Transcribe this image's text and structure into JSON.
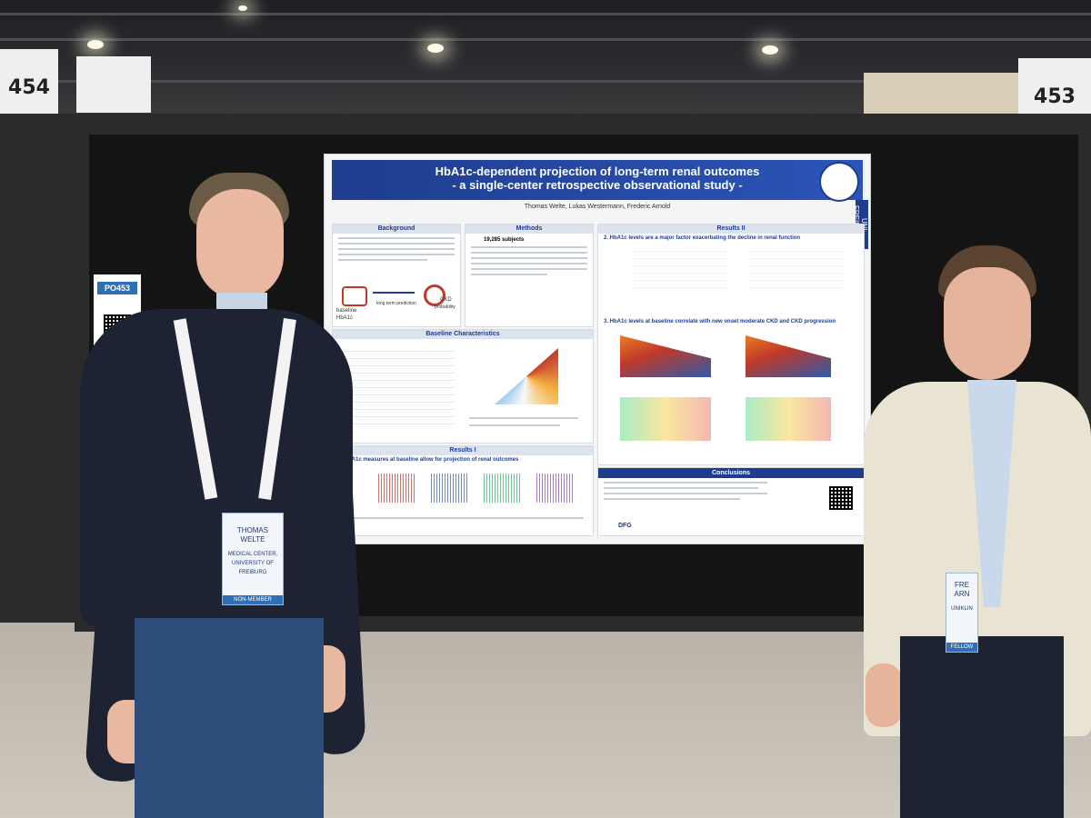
{
  "booths": {
    "left": "454",
    "right": "453"
  },
  "board_tag": {
    "id": "PO453"
  },
  "poster": {
    "title_line1": "HbA1c-dependent projection of long-term renal outcomes",
    "title_line2": "- a single-center retrospective observational study -",
    "authors": "Thomas Welte, Lukas Westermann, Frederic Arnold",
    "logo_text": "UNI FREIBURG",
    "sections": {
      "background": "Background",
      "methods": "Methods",
      "baseline": "Baseline Characteristics",
      "results1": "Results I",
      "results2": "Results II",
      "conclusions": "Conclusions"
    },
    "results2_sub1": "2. HbA1c levels are a major factor exacerbating the decline in renal function",
    "results2_sub2": "3. HbA1c levels at baseline correlate with new onset moderate CKD and CKD progression",
    "results1_sub": "1. HbA1c measures at baseline allow for projection of renal outcomes",
    "methods_subjects": "19,285 subjects",
    "background_labels": {
      "baseline": "baseline",
      "hba1c": "HbA1c",
      "projection": "long term prediction",
      "ckd": "CKD",
      "probability": "probability"
    },
    "funding": "DFG"
  },
  "badges": {
    "left": {
      "first": "THOMAS",
      "last": "WELTE",
      "org1": "MEDICAL CENTER,",
      "org2": "UNIVERSITY OF",
      "org3": "FREIBURG",
      "type": "NON-MEMBER"
    },
    "right": {
      "first": "FRE",
      "last": "ARN",
      "org1": "UNIKLIN",
      "type": "FELLOW"
    }
  },
  "colors": {
    "banner": "#1f3d8f",
    "board": "#141414",
    "badge_accent": "#2f6fb5"
  }
}
